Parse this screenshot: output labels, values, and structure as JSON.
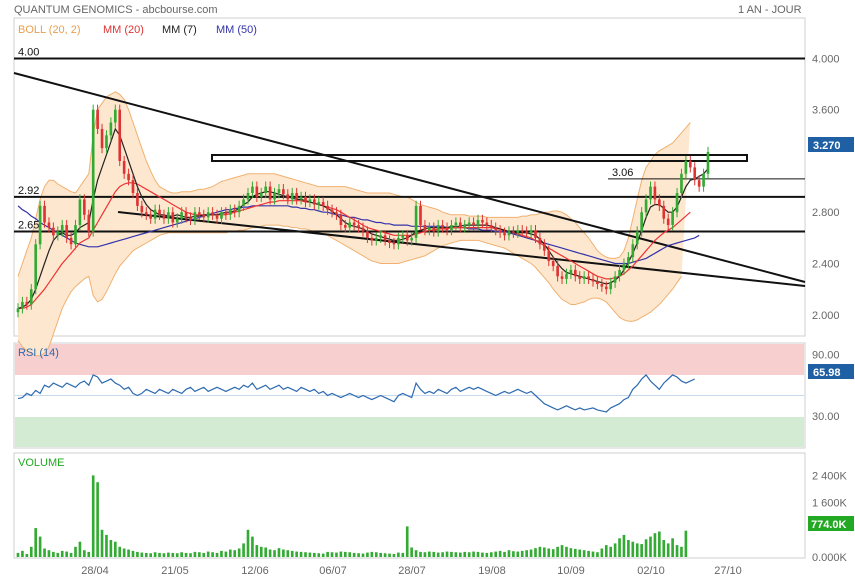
{
  "header": {
    "title": "QUANTUM GENOMICS - abcbourse.com",
    "period": "1 AN - JOUR"
  },
  "legend": {
    "boll": "BOLL (20, 2)",
    "mm20": "MM (20)",
    "mm7": "MM (7)",
    "mm50": "MM (50)"
  },
  "colors": {
    "up": "#33aa33",
    "down": "#dd3333",
    "boll_fill": "#fde8cf",
    "boll_line": "#f0b070",
    "mm20": "#ee3333",
    "mm7": "#222222",
    "mm50": "#3333aa",
    "rsi": "#2d6ab0",
    "rsi_over": "#f7cfcf",
    "rsi_under": "#d3ead3",
    "volume": "#33aa33",
    "last_badge": "#1f5fa3",
    "vol_badge": "#22a822"
  },
  "chart_data": {
    "price": {
      "type": "candlestick",
      "ylim": [
        1.85,
        4.3
      ],
      "yticks": [
        "4.000",
        "3.600",
        "3.270",
        "2.800",
        "2.400",
        "2.000"
      ],
      "last_value": "3.270",
      "levels": [
        {
          "label": "4.00",
          "value": 4.0
        },
        {
          "label": "2.92",
          "value": 2.92
        },
        {
          "label": "2.65",
          "value": 2.65
        },
        {
          "label": "3.06",
          "value": 3.06
        }
      ],
      "close": [
        2.05,
        2.1,
        2.08,
        2.2,
        2.55,
        2.85,
        2.72,
        2.68,
        2.62,
        2.65,
        2.7,
        2.6,
        2.55,
        2.7,
        2.9,
        2.78,
        2.65,
        3.6,
        3.45,
        3.3,
        3.4,
        3.5,
        3.6,
        3.2,
        3.1,
        3.05,
        2.95,
        2.85,
        2.8,
        2.78,
        2.75,
        2.82,
        2.78,
        2.75,
        2.8,
        2.72,
        2.75,
        2.8,
        2.76,
        2.74,
        2.8,
        2.78,
        2.76,
        2.8,
        2.78,
        2.75,
        2.8,
        2.78,
        2.82,
        2.8,
        2.85,
        2.9,
        2.95,
        3.0,
        2.92,
        2.95,
        3.0,
        2.9,
        2.95,
        2.98,
        2.94,
        2.9,
        2.95,
        2.9,
        2.92,
        2.88,
        2.9,
        2.86,
        2.88,
        2.85,
        2.82,
        2.8,
        2.78,
        2.7,
        2.68,
        2.72,
        2.7,
        2.68,
        2.65,
        2.6,
        2.58,
        2.6,
        2.62,
        2.58,
        2.56,
        2.55,
        2.6,
        2.62,
        2.58,
        2.6,
        2.85,
        2.7,
        2.66,
        2.68,
        2.65,
        2.7,
        2.68,
        2.66,
        2.7,
        2.72,
        2.68,
        2.7,
        2.72,
        2.7,
        2.74,
        2.72,
        2.7,
        2.68,
        2.66,
        2.64,
        2.62,
        2.65,
        2.64,
        2.66,
        2.65,
        2.64,
        2.66,
        2.6,
        2.55,
        2.5,
        2.42,
        2.38,
        2.3,
        2.28,
        2.32,
        2.35,
        2.3,
        2.28,
        2.3,
        2.28,
        2.26,
        2.24,
        2.22,
        2.2,
        2.25,
        2.3,
        2.35,
        2.4,
        2.45,
        2.55,
        2.65,
        2.8,
        2.9,
        3.0,
        2.9,
        2.85,
        2.75,
        2.7,
        2.8,
        2.95,
        3.1,
        3.2,
        3.15,
        3.05,
        3.0,
        3.1,
        3.27
      ],
      "mm7": [
        2.05,
        2.06,
        2.08,
        2.12,
        2.2,
        2.3,
        2.4,
        2.5,
        2.58,
        2.62,
        2.64,
        2.62,
        2.62,
        2.64,
        2.68,
        2.7,
        2.72,
        2.9,
        3.05,
        3.15,
        3.25,
        3.35,
        3.45,
        3.4,
        3.3,
        3.2,
        3.1,
        3.0,
        2.92,
        2.86,
        2.82,
        2.8,
        2.78,
        2.78,
        2.77,
        2.77,
        2.78,
        2.77,
        2.76,
        2.76,
        2.77,
        2.77,
        2.78,
        2.78,
        2.78,
        2.78,
        2.79,
        2.8,
        2.8,
        2.81,
        2.83,
        2.86,
        2.88,
        2.92,
        2.94,
        2.95,
        2.96,
        2.96,
        2.95,
        2.94,
        2.93,
        2.92,
        2.91,
        2.9,
        2.9,
        2.89,
        2.88,
        2.87,
        2.86,
        2.85,
        2.83,
        2.81,
        2.78,
        2.75,
        2.72,
        2.7,
        2.69,
        2.68,
        2.67,
        2.65,
        2.63,
        2.62,
        2.61,
        2.6,
        2.59,
        2.58,
        2.58,
        2.59,
        2.6,
        2.62,
        2.65,
        2.66,
        2.67,
        2.68,
        2.68,
        2.68,
        2.68,
        2.68,
        2.69,
        2.69,
        2.69,
        2.7,
        2.7,
        2.7,
        2.7,
        2.7,
        2.7,
        2.69,
        2.68,
        2.67,
        2.66,
        2.65,
        2.64,
        2.64,
        2.64,
        2.64,
        2.63,
        2.62,
        2.59,
        2.55,
        2.5,
        2.45,
        2.4,
        2.36,
        2.33,
        2.32,
        2.31,
        2.3,
        2.29,
        2.28,
        2.27,
        2.26,
        2.25,
        2.24,
        2.25,
        2.27,
        2.3,
        2.35,
        2.41,
        2.48,
        2.56,
        2.66,
        2.76,
        2.84,
        2.86,
        2.86,
        2.83,
        2.8,
        2.8,
        2.84,
        2.92,
        3.0,
        3.05,
        3.06,
        3.08,
        3.1,
        3.14
      ],
      "mm20": [
        2.05,
        2.05,
        2.06,
        2.08,
        2.12,
        2.16,
        2.2,
        2.25,
        2.3,
        2.35,
        2.4,
        2.44,
        2.48,
        2.52,
        2.56,
        2.58,
        2.6,
        2.66,
        2.72,
        2.78,
        2.84,
        2.9,
        2.96,
        3.0,
        3.02,
        3.03,
        3.03,
        3.02,
        3.0,
        2.98,
        2.96,
        2.94,
        2.92,
        2.9,
        2.88,
        2.86,
        2.84,
        2.82,
        2.8,
        2.79,
        2.78,
        2.78,
        2.78,
        2.78,
        2.78,
        2.78,
        2.78,
        2.78,
        2.79,
        2.8,
        2.81,
        2.82,
        2.83,
        2.84,
        2.85,
        2.86,
        2.87,
        2.88,
        2.88,
        2.89,
        2.89,
        2.89,
        2.89,
        2.89,
        2.89,
        2.88,
        2.88,
        2.87,
        2.86,
        2.85,
        2.84,
        2.83,
        2.82,
        2.8,
        2.78,
        2.76,
        2.74,
        2.72,
        2.7,
        2.68,
        2.67,
        2.66,
        2.65,
        2.64,
        2.63,
        2.62,
        2.62,
        2.62,
        2.62,
        2.62,
        2.63,
        2.64,
        2.65,
        2.66,
        2.66,
        2.67,
        2.67,
        2.67,
        2.68,
        2.68,
        2.68,
        2.68,
        2.68,
        2.68,
        2.68,
        2.68,
        2.68,
        2.68,
        2.67,
        2.67,
        2.66,
        2.65,
        2.64,
        2.63,
        2.62,
        2.61,
        2.6,
        2.58,
        2.56,
        2.54,
        2.52,
        2.5,
        2.48,
        2.46,
        2.44,
        2.42,
        2.4,
        2.38,
        2.36,
        2.34,
        2.32,
        2.3,
        2.29,
        2.28,
        2.28,
        2.29,
        2.3,
        2.32,
        2.35,
        2.38,
        2.42,
        2.46,
        2.5,
        2.54,
        2.58,
        2.61,
        2.64,
        2.66,
        2.68,
        2.71,
        2.74,
        2.77,
        2.8
      ],
      "mm50": [
        2.85,
        2.82,
        2.8,
        2.77,
        2.75,
        2.72,
        2.7,
        2.68,
        2.66,
        2.64,
        2.62,
        2.6,
        2.58,
        2.56,
        2.55,
        2.54,
        2.53,
        2.53,
        2.53,
        2.54,
        2.55,
        2.56,
        2.57,
        2.58,
        2.59,
        2.6,
        2.61,
        2.62,
        2.63,
        2.64,
        2.65,
        2.66,
        2.67,
        2.68,
        2.69,
        2.7,
        2.71,
        2.72,
        2.73,
        2.74,
        2.75,
        2.76,
        2.77,
        2.78,
        2.79,
        2.8,
        2.81,
        2.82,
        2.82,
        2.83,
        2.83,
        2.84,
        2.84,
        2.85,
        2.85,
        2.85,
        2.85,
        2.85,
        2.85,
        2.85,
        2.85,
        2.85,
        2.84,
        2.84,
        2.83,
        2.83,
        2.82,
        2.82,
        2.81,
        2.8,
        2.8,
        2.79,
        2.78,
        2.78,
        2.77,
        2.76,
        2.76,
        2.75,
        2.74,
        2.74,
        2.73,
        2.72,
        2.72,
        2.71,
        2.71,
        2.7,
        2.7,
        2.7,
        2.7,
        2.69,
        2.69,
        2.69,
        2.69,
        2.69,
        2.69,
        2.69,
        2.69,
        2.68,
        2.68,
        2.68,
        2.68,
        2.68,
        2.67,
        2.67,
        2.67,
        2.66,
        2.66,
        2.66,
        2.65,
        2.65,
        2.65,
        2.64,
        2.63,
        2.62,
        2.61,
        2.6,
        2.59,
        2.58,
        2.57,
        2.56,
        2.55,
        2.54,
        2.53,
        2.52,
        2.51,
        2.5,
        2.49,
        2.48,
        2.47,
        2.46,
        2.45,
        2.44,
        2.43,
        2.42,
        2.41,
        2.4,
        2.4,
        2.4,
        2.4,
        2.41,
        2.42,
        2.43,
        2.44,
        2.46,
        2.48,
        2.5,
        2.52,
        2.54,
        2.55,
        2.56,
        2.57,
        2.58,
        2.59,
        2.6,
        2.62
      ],
      "boll_upper": [
        2.3,
        2.4,
        2.5,
        2.6,
        2.75,
        2.9,
        3.0,
        3.05,
        3.05,
        3.02,
        3.0,
        2.98,
        2.96,
        2.95,
        3.0,
        3.05,
        3.1,
        3.4,
        3.6,
        3.65,
        3.7,
        3.72,
        3.74,
        3.72,
        3.68,
        3.6,
        3.5,
        3.4,
        3.3,
        3.2,
        3.12,
        3.05,
        3.0,
        2.98,
        2.96,
        2.95,
        2.95,
        2.96,
        2.96,
        2.96,
        2.97,
        2.98,
        2.98,
        2.99,
        3.0,
        3.02,
        3.04,
        3.05,
        3.06,
        3.07,
        3.08,
        3.09,
        3.1,
        3.1,
        3.1,
        3.1,
        3.1,
        3.1,
        3.1,
        3.09,
        3.08,
        3.07,
        3.06,
        3.05,
        3.04,
        3.03,
        3.02,
        3.01,
        3.0,
        3.0,
        3.0,
        3.0,
        3.0,
        3.0,
        3.0,
        2.99,
        2.98,
        2.97,
        2.96,
        2.95,
        2.95,
        2.95,
        2.95,
        2.95,
        2.95,
        2.94,
        2.93,
        2.92,
        2.92,
        2.9,
        2.88,
        2.86,
        2.85,
        2.84,
        2.83,
        2.82,
        2.8,
        2.79,
        2.78,
        2.78,
        2.78,
        2.78,
        2.77,
        2.77,
        2.77,
        2.77,
        2.76,
        2.76,
        2.76,
        2.76,
        2.76,
        2.76,
        2.76,
        2.76,
        2.77,
        2.77,
        2.78,
        2.78,
        2.79,
        2.8,
        2.8,
        2.81,
        2.81,
        2.8,
        2.78,
        2.75,
        2.72,
        2.68,
        2.64,
        2.6,
        2.55,
        2.5,
        2.47,
        2.45,
        2.44,
        2.44,
        2.45,
        2.5,
        2.6,
        2.75,
        2.9,
        3.05,
        3.15,
        3.2,
        3.25,
        3.28,
        3.3,
        3.32,
        3.34,
        3.38,
        3.42,
        3.46,
        3.5
      ],
      "boll_lower": [
        1.8,
        1.75,
        1.72,
        1.7,
        1.68,
        1.68,
        1.7,
        1.75,
        1.85,
        1.95,
        2.05,
        2.12,
        2.18,
        2.22,
        2.25,
        2.28,
        2.3,
        2.15,
        2.1,
        2.12,
        2.18,
        2.25,
        2.32,
        2.38,
        2.42,
        2.46,
        2.5,
        2.52,
        2.54,
        2.56,
        2.58,
        2.6,
        2.62,
        2.63,
        2.64,
        2.64,
        2.64,
        2.64,
        2.64,
        2.64,
        2.64,
        2.64,
        2.64,
        2.64,
        2.64,
        2.64,
        2.64,
        2.64,
        2.65,
        2.65,
        2.66,
        2.66,
        2.67,
        2.68,
        2.68,
        2.69,
        2.7,
        2.7,
        2.7,
        2.7,
        2.69,
        2.69,
        2.68,
        2.68,
        2.67,
        2.67,
        2.66,
        2.65,
        2.64,
        2.63,
        2.62,
        2.6,
        2.58,
        2.56,
        2.54,
        2.52,
        2.5,
        2.48,
        2.46,
        2.44,
        2.42,
        2.41,
        2.4,
        2.4,
        2.4,
        2.4,
        2.4,
        2.41,
        2.42,
        2.43,
        2.44,
        2.45,
        2.46,
        2.48,
        2.5,
        2.52,
        2.54,
        2.55,
        2.56,
        2.57,
        2.58,
        2.58,
        2.58,
        2.58,
        2.58,
        2.57,
        2.56,
        2.55,
        2.54,
        2.53,
        2.52,
        2.5,
        2.48,
        2.46,
        2.44,
        2.42,
        2.4,
        2.37,
        2.33,
        2.29,
        2.25,
        2.2,
        2.16,
        2.12,
        2.1,
        2.08,
        2.08,
        2.09,
        2.1,
        2.12,
        2.13,
        2.13,
        2.12,
        2.1,
        2.06,
        2.02,
        1.98,
        1.96,
        1.95,
        1.95,
        1.96,
        1.98,
        2.0,
        2.02,
        2.05,
        2.08,
        2.12,
        2.16,
        2.2,
        2.25,
        2.3
      ]
    },
    "rsi": {
      "label": "RSI (14)",
      "ylim": [
        0,
        100
      ],
      "yticks": [
        "90.00",
        "30.00"
      ],
      "last_value": "65.98",
      "values": [
        47,
        48,
        52,
        50,
        55,
        52,
        60,
        58,
        62,
        60,
        58,
        62,
        60,
        58,
        62,
        64,
        60,
        70,
        68,
        62,
        64,
        66,
        62,
        60,
        56,
        58,
        52,
        50,
        52,
        56,
        54,
        52,
        56,
        54,
        52,
        56,
        54,
        52,
        56,
        58,
        54,
        56,
        58,
        54,
        56,
        58,
        56,
        54,
        56,
        58,
        56,
        60,
        58,
        62,
        56,
        58,
        60,
        56,
        58,
        60,
        56,
        58,
        56,
        54,
        58,
        56,
        54,
        56,
        52,
        54,
        50,
        52,
        50,
        48,
        50,
        52,
        50,
        48,
        50,
        48,
        46,
        48,
        50,
        48,
        46,
        44,
        50,
        52,
        50,
        48,
        62,
        56,
        52,
        54,
        52,
        56,
        54,
        52,
        56,
        58,
        54,
        56,
        58,
        56,
        58,
        56,
        54,
        52,
        50,
        52,
        54,
        52,
        54,
        56,
        54,
        52,
        54,
        50,
        46,
        42,
        40,
        38,
        36,
        38,
        40,
        38,
        36,
        38,
        36,
        37,
        38,
        36,
        35,
        34,
        38,
        40,
        42,
        46,
        48,
        56,
        60,
        66,
        70,
        64,
        60,
        56,
        62,
        66,
        70,
        68,
        64,
        62,
        64,
        66
      ],
      "over": 70,
      "under": 30
    },
    "volume": {
      "label": "VOLUME",
      "ylim": [
        0,
        3000
      ],
      "yticks": [
        "2 400K",
        "1 600K",
        "774.0K",
        "0.000K"
      ],
      "last_value": "774.0K",
      "values": [
        120,
        180,
        90,
        300,
        850,
        600,
        250,
        200,
        150,
        120,
        180,
        160,
        120,
        300,
        450,
        200,
        150,
        2400,
        2200,
        800,
        650,
        500,
        450,
        300,
        250,
        220,
        180,
        150,
        130,
        120,
        110,
        140,
        120,
        110,
        130,
        120,
        110,
        140,
        120,
        110,
        150,
        140,
        120,
        160,
        140,
        120,
        180,
        160,
        220,
        200,
        250,
        400,
        800,
        600,
        350,
        300,
        280,
        220,
        200,
        260,
        220,
        200,
        180,
        160,
        150,
        140,
        130,
        120,
        110,
        100,
        150,
        140,
        130,
        160,
        150,
        140,
        120,
        110,
        100,
        130,
        150,
        140,
        120,
        110,
        100,
        90,
        130,
        120,
        900,
        280,
        200,
        150,
        140,
        160,
        150,
        130,
        140,
        160,
        150,
        140,
        130,
        150,
        140,
        160,
        150,
        130,
        120,
        140,
        160,
        180,
        150,
        200,
        170,
        160,
        180,
        200,
        220,
        260,
        300,
        280,
        250,
        230,
        300,
        350,
        300,
        260,
        240,
        220,
        200,
        180,
        160,
        140,
        250,
        350,
        300,
        400,
        550,
        650,
        500,
        450,
        400,
        380,
        520,
        600,
        700,
        750,
        500,
        400,
        550,
        350,
        300,
        774
      ]
    },
    "x_ticks": [
      "28/04",
      "21/05",
      "12/06",
      "06/07",
      "28/07",
      "19/08",
      "10/09",
      "02/10",
      "27/10"
    ]
  }
}
